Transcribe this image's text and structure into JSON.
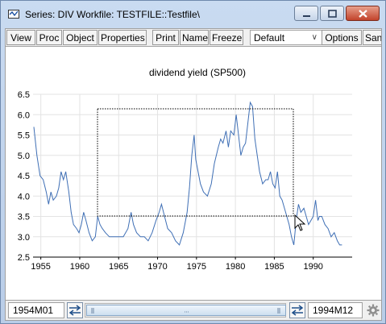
{
  "window": {
    "title": "Series: DIV   Workfile: TESTFILE::Testfile\\"
  },
  "toolbar": {
    "view": "View",
    "proc": "Proc",
    "object": "Object",
    "properties": "Properties",
    "print": "Print",
    "name": "Name",
    "freeze": "Freeze",
    "style_select": "Default",
    "options": "Options",
    "sample": "San"
  },
  "statusbar": {
    "start": "1954M01",
    "end": "1994M12"
  },
  "chart_data": {
    "type": "line",
    "title": "dividend yield (SP500)",
    "xlabel": "",
    "ylabel": "",
    "xlim": [
      1954.0,
      1995.0
    ],
    "ylim": [
      2.5,
      6.5
    ],
    "xticks": [
      "1955",
      "1960",
      "1965",
      "1970",
      "1975",
      "1980",
      "1985",
      "1990"
    ],
    "yticks": [
      "2.5",
      "3.0",
      "3.5",
      "4.0",
      "4.5",
      "5.0",
      "5.5",
      "6.0",
      "6.5"
    ],
    "grid": true,
    "series": [
      {
        "name": "",
        "x": [
          1954.1,
          1954.5,
          1954.9,
          1955.3,
          1955.7,
          1956.0,
          1956.3,
          1956.6,
          1957.0,
          1957.3,
          1957.6,
          1957.9,
          1958.2,
          1958.6,
          1958.9,
          1959.2,
          1959.6,
          1959.9,
          1960.2,
          1960.5,
          1960.8,
          1961.2,
          1961.6,
          1962.0,
          1962.3,
          1962.6,
          1962.9,
          1963.3,
          1963.8,
          1964.4,
          1965.0,
          1965.6,
          1966.2,
          1966.6,
          1966.9,
          1967.3,
          1967.8,
          1968.3,
          1968.8,
          1969.3,
          1969.8,
          1970.2,
          1970.5,
          1970.9,
          1971.3,
          1971.8,
          1972.3,
          1972.8,
          1973.3,
          1973.8,
          1974.1,
          1974.4,
          1974.7,
          1974.9,
          1975.2,
          1975.5,
          1975.9,
          1976.4,
          1976.9,
          1977.3,
          1977.8,
          1978.1,
          1978.4,
          1978.8,
          1979.1,
          1979.4,
          1979.8,
          1980.1,
          1980.4,
          1980.7,
          1981.0,
          1981.3,
          1981.6,
          1981.9,
          1982.2,
          1982.5,
          1982.8,
          1983.1,
          1983.5,
          1983.9,
          1984.2,
          1984.5,
          1984.8,
          1985.1,
          1985.4,
          1985.7,
          1986.0,
          1986.3,
          1986.6,
          1986.9,
          1987.2,
          1987.5,
          1987.8,
          1988.1,
          1988.4,
          1988.8,
          1989.1,
          1989.4,
          1989.7,
          1990.0,
          1990.3,
          1990.6,
          1990.8,
          1991.1,
          1991.5,
          1991.9,
          1992.3,
          1992.7,
          1993.1,
          1993.4,
          1993.7
        ],
        "values": [
          5.7,
          5.0,
          4.5,
          4.4,
          4.1,
          3.8,
          4.1,
          3.9,
          4.0,
          4.2,
          4.6,
          4.4,
          4.6,
          4.1,
          3.6,
          3.3,
          3.2,
          3.1,
          3.3,
          3.6,
          3.4,
          3.1,
          2.9,
          3.0,
          3.5,
          3.3,
          3.2,
          3.1,
          3.0,
          3.0,
          3.0,
          3.0,
          3.2,
          3.6,
          3.3,
          3.1,
          3.0,
          3.0,
          2.9,
          3.1,
          3.4,
          3.6,
          3.8,
          3.5,
          3.2,
          3.1,
          2.9,
          2.8,
          3.1,
          3.6,
          4.2,
          5.0,
          5.5,
          4.9,
          4.6,
          4.3,
          4.1,
          4.0,
          4.3,
          4.8,
          5.2,
          5.4,
          5.3,
          5.6,
          5.2,
          5.6,
          5.5,
          6.0,
          5.5,
          5.0,
          5.2,
          5.3,
          5.8,
          6.3,
          6.2,
          5.4,
          5.0,
          4.6,
          4.3,
          4.4,
          4.4,
          4.6,
          4.3,
          4.2,
          4.6,
          4.0,
          3.9,
          3.7,
          3.5,
          3.3,
          3.0,
          2.8,
          3.4,
          3.8,
          3.6,
          3.7,
          3.5,
          3.3,
          3.4,
          3.5,
          3.9,
          3.4,
          3.5,
          3.5,
          3.3,
          3.2,
          3.0,
          3.1,
          2.9,
          2.8,
          2.8
        ]
      }
    ]
  }
}
